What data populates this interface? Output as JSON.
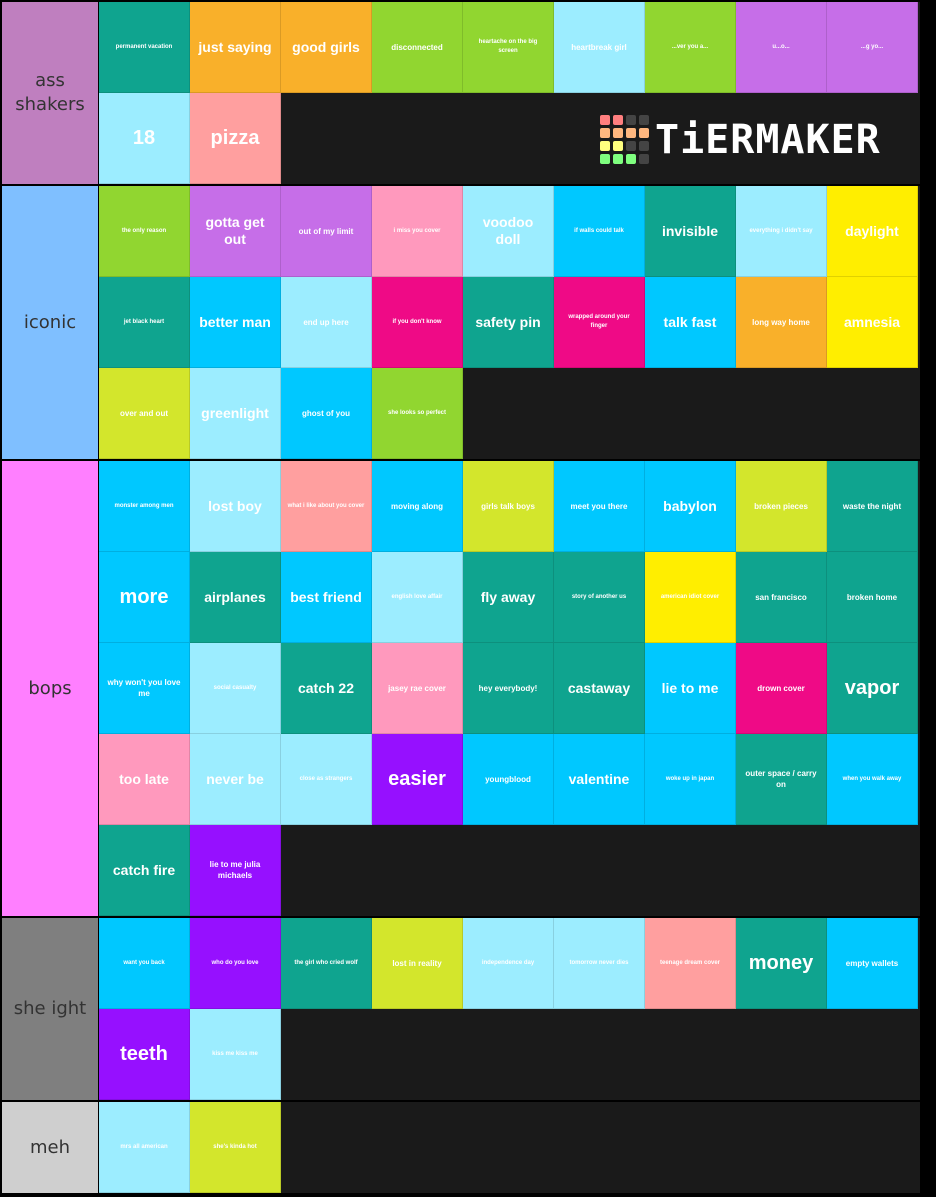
{
  "watermark": {
    "text": "TiERMAKER",
    "grid_colors": [
      "#ff7f7f",
      "#ff7f7f",
      "#444",
      "#444",
      "#ffb77f",
      "#ffb77f",
      "#ffb77f",
      "#ffb77f",
      "#ffff7f",
      "#ffff7f",
      "#444",
      "#444",
      "#7fff7f",
      "#7fff7f",
      "#7fff7f",
      "#444"
    ]
  },
  "colors": {
    "teal": "#0FA48F",
    "orange": "#F9B02A",
    "green": "#91D630",
    "lightblue": "#9CEDFF",
    "purple": "#C66EE8",
    "pink": "#FF99BD",
    "cyan": "#00C8FF",
    "yellow": "#FFEE00",
    "magenta": "#EF0A86",
    "lime": "#D3E62C",
    "salmon": "#FF9F9F",
    "violet": "#9610FF"
  },
  "tiers": [
    {
      "label": "ass shakers",
      "color": "#BF7FBF",
      "items": [
        {
          "text": "permanent vacation",
          "color": "teal"
        },
        {
          "text": "just saying",
          "color": "orange"
        },
        {
          "text": "good girls",
          "color": "orange"
        },
        {
          "text": "disconnected",
          "color": "green"
        },
        {
          "text": "heartache on the big screen",
          "color": "green"
        },
        {
          "text": "heartbreak girl",
          "color": "lightblue"
        },
        {
          "text": "...ver you a...",
          "color": "green"
        },
        {
          "text": "u...o...",
          "color": "purple"
        },
        {
          "text": "...g yo...",
          "color": "purple"
        },
        {
          "text": "18",
          "color": "lightblue"
        },
        {
          "text": "pizza",
          "color": "salmon"
        }
      ]
    },
    {
      "label": "iconic",
      "color": "#7FBFFF",
      "items": [
        {
          "text": "the only reason",
          "color": "green"
        },
        {
          "text": "gotta get out",
          "color": "purple"
        },
        {
          "text": "out of my limit",
          "color": "purple"
        },
        {
          "text": "i miss you cover",
          "color": "pink"
        },
        {
          "text": "voodoo doll",
          "color": "lightblue"
        },
        {
          "text": "if walls could talk",
          "color": "cyan"
        },
        {
          "text": "invisible",
          "color": "teal"
        },
        {
          "text": "everything i didn't say",
          "color": "lightblue"
        },
        {
          "text": "daylight",
          "color": "yellow"
        },
        {
          "text": "jet black heart",
          "color": "teal"
        },
        {
          "text": "better man",
          "color": "cyan"
        },
        {
          "text": "end up here",
          "color": "lightblue"
        },
        {
          "text": "if you don't know",
          "color": "magenta"
        },
        {
          "text": "safety pin",
          "color": "teal"
        },
        {
          "text": "wrapped around your finger",
          "color": "magenta"
        },
        {
          "text": "talk fast",
          "color": "cyan"
        },
        {
          "text": "long way home",
          "color": "orange"
        },
        {
          "text": "amnesia",
          "color": "yellow"
        },
        {
          "text": "over and out",
          "color": "lime"
        },
        {
          "text": "greenlight",
          "color": "lightblue"
        },
        {
          "text": "ghost of you",
          "color": "cyan"
        },
        {
          "text": "she looks so perfect",
          "color": "green"
        }
      ]
    },
    {
      "label": "bops",
      "color": "#FF7FFF",
      "items": [
        {
          "text": "monster among men",
          "color": "cyan"
        },
        {
          "text": "lost boy",
          "color": "lightblue"
        },
        {
          "text": "what i like about you cover",
          "color": "salmon"
        },
        {
          "text": "moving along",
          "color": "cyan"
        },
        {
          "text": "girls talk boys",
          "color": "lime"
        },
        {
          "text": "meet you there",
          "color": "cyan"
        },
        {
          "text": "babylon",
          "color": "cyan"
        },
        {
          "text": "broken pieces",
          "color": "lime"
        },
        {
          "text": "waste the night",
          "color": "teal"
        },
        {
          "text": "more",
          "color": "cyan"
        },
        {
          "text": "airplanes",
          "color": "teal"
        },
        {
          "text": "best friend",
          "color": "cyan"
        },
        {
          "text": "english love affair",
          "color": "lightblue"
        },
        {
          "text": "fly away",
          "color": "teal"
        },
        {
          "text": "story of another us",
          "color": "teal"
        },
        {
          "text": "american idiot cover",
          "color": "yellow"
        },
        {
          "text": "san francisco",
          "color": "teal"
        },
        {
          "text": "broken home",
          "color": "teal"
        },
        {
          "text": "why won't you love me",
          "color": "cyan"
        },
        {
          "text": "social casualty",
          "color": "lightblue"
        },
        {
          "text": "catch 22",
          "color": "teal"
        },
        {
          "text": "jasey rae cover",
          "color": "pink"
        },
        {
          "text": "hey everybody!",
          "color": "teal"
        },
        {
          "text": "castaway",
          "color": "teal"
        },
        {
          "text": "lie to me",
          "color": "cyan"
        },
        {
          "text": "drown cover",
          "color": "magenta"
        },
        {
          "text": "vapor",
          "color": "teal"
        },
        {
          "text": "too late",
          "color": "pink"
        },
        {
          "text": "never be",
          "color": "lightblue"
        },
        {
          "text": "close as strangers",
          "color": "lightblue"
        },
        {
          "text": "easier",
          "color": "violet"
        },
        {
          "text": "youngblood",
          "color": "cyan"
        },
        {
          "text": "valentine",
          "color": "cyan"
        },
        {
          "text": "woke up in japan",
          "color": "cyan"
        },
        {
          "text": "outer space / carry on",
          "color": "teal"
        },
        {
          "text": "when you walk away",
          "color": "cyan"
        },
        {
          "text": "catch fire",
          "color": "teal"
        },
        {
          "text": "lie to me julia michaels",
          "color": "violet"
        }
      ]
    },
    {
      "label": "she ight",
      "color": "#7F7F7F",
      "items": [
        {
          "text": "want you back",
          "color": "cyan"
        },
        {
          "text": "who do you love",
          "color": "violet"
        },
        {
          "text": "the girl who cried wolf",
          "color": "teal"
        },
        {
          "text": "lost in reality",
          "color": "lime"
        },
        {
          "text": "independence day",
          "color": "lightblue"
        },
        {
          "text": "tomorrow never dies",
          "color": "lightblue"
        },
        {
          "text": "teenage dream cover",
          "color": "salmon"
        },
        {
          "text": "money",
          "color": "teal"
        },
        {
          "text": "empty wallets",
          "color": "cyan"
        },
        {
          "text": "teeth",
          "color": "violet"
        },
        {
          "text": "kiss me kiss me",
          "color": "lightblue"
        }
      ]
    },
    {
      "label": "meh",
      "color": "#CFCFCF",
      "items": [
        {
          "text": "mrs all american",
          "color": "lightblue"
        },
        {
          "text": "she's kinda hot",
          "color": "lime"
        }
      ]
    }
  ]
}
